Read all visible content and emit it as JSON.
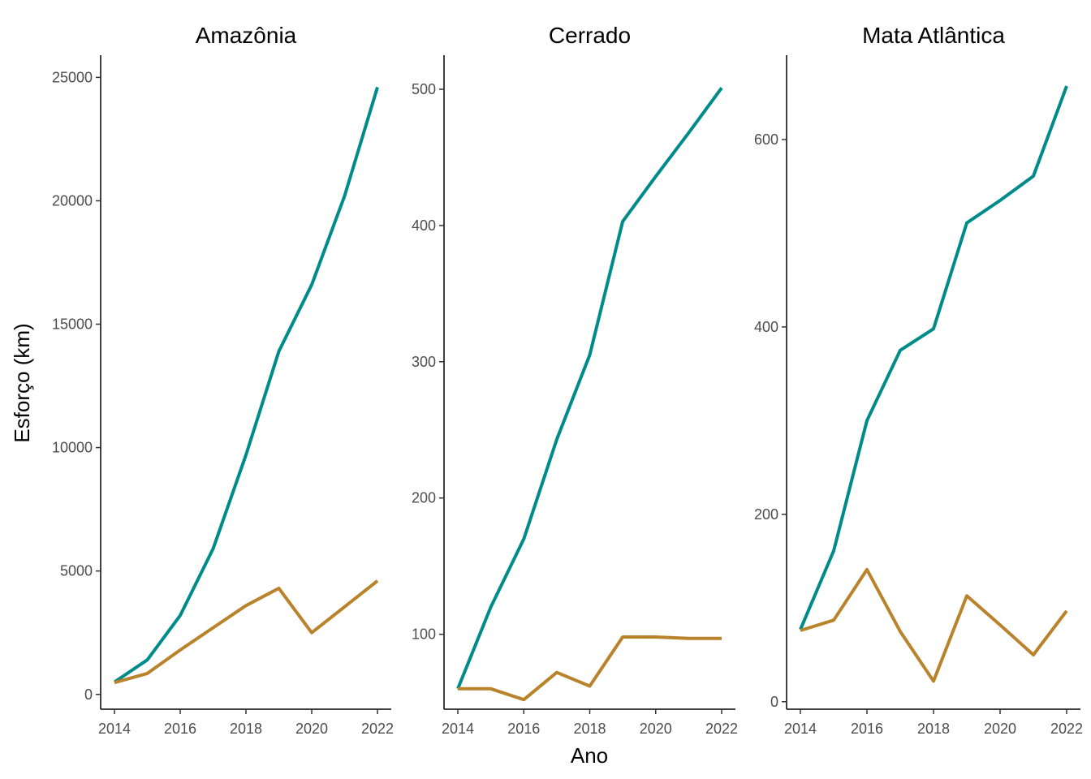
{
  "chart_data": {
    "type": "line",
    "ylabel": "Esforço (km)",
    "xlabel": "Ano",
    "colors": {
      "teal": "#008B8B",
      "ochre": "#B8832A"
    },
    "panels": [
      {
        "title": "Amazônia",
        "x": [
          2014,
          2015,
          2016,
          2017,
          2018,
          2019,
          2020,
          2021,
          2022
        ],
        "xticks": [
          2014,
          2016,
          2018,
          2020,
          2022
        ],
        "ylim": [
          -600,
          25900
        ],
        "yticks": [
          0,
          5000,
          10000,
          15000,
          20000,
          25000
        ],
        "series": [
          {
            "color": "#008B8B",
            "values": [
              500,
              1400,
              3200,
              5900,
              9700,
              13900,
              16600,
              20200,
              24600
            ]
          },
          {
            "color": "#B8832A",
            "values": [
              480,
              850,
              1800,
              2700,
              3600,
              4300,
              2500,
              3550,
              4600
            ]
          }
        ]
      },
      {
        "title": "Cerrado",
        "x": [
          2014,
          2015,
          2016,
          2017,
          2018,
          2019,
          2020,
          2021,
          2022
        ],
        "xticks": [
          2014,
          2016,
          2018,
          2020,
          2022
        ],
        "ylim": [
          45,
          525
        ],
        "yticks": [
          100,
          200,
          300,
          400,
          500
        ],
        "series": [
          {
            "color": "#008B8B",
            "values": [
              60,
              120,
              170,
              243,
              305,
              403,
              436,
              468,
              501
            ]
          },
          {
            "color": "#B8832A",
            "values": [
              60,
              60,
              52,
              72,
              62,
              98,
              98,
              97,
              97
            ]
          }
        ]
      },
      {
        "title": "Mata Atlântica",
        "x": [
          2014,
          2015,
          2016,
          2017,
          2018,
          2019,
          2020,
          2021,
          2022
        ],
        "xticks": [
          2014,
          2016,
          2018,
          2020,
          2022
        ],
        "ylim": [
          -8,
          690
        ],
        "yticks": [
          0,
          200,
          400,
          600
        ],
        "series": [
          {
            "color": "#008B8B",
            "values": [
              77,
              161,
              300,
              375,
              398,
              511,
              535,
              561,
              657
            ]
          },
          {
            "color": "#B8832A",
            "values": [
              76,
              87,
              141,
              75,
              22,
              113,
              82,
              50,
              97
            ]
          }
        ]
      }
    ]
  }
}
